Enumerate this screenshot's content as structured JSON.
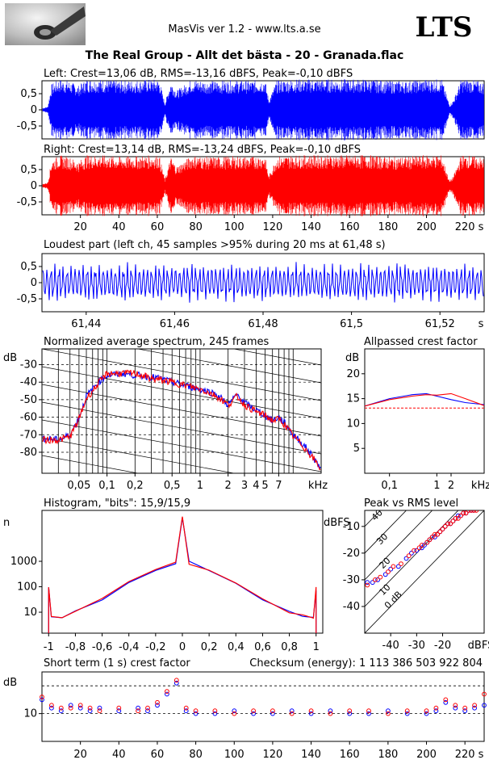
{
  "header": {
    "app_title": "MasVis ver 1.2 - www.lts.a.se",
    "logo_text": "LTS",
    "track_title": "The Real Group - Allt det bästa - 20 - Granada.flac"
  },
  "colors": {
    "left": "#0000ff",
    "right": "#ff0000",
    "background": "#ffffff",
    "axis": "#000000"
  },
  "chart_data": [
    {
      "id": "left-waveform",
      "type": "line",
      "title": "Left: Crest=13,06 dB, RMS=-13,16 dBFS, Peak=-0,10 dBFS",
      "yticks": [
        "0,5",
        "0",
        "-0,5"
      ],
      "ytick_values": [
        0.5,
        0,
        -0.5
      ],
      "ylim": [
        -0.9,
        0.9
      ],
      "xlim": [
        0,
        230
      ],
      "units_x": "s",
      "series": [
        {
          "color": "#0000ff",
          "envelope_time_s": [
            0,
            3,
            5,
            9,
            14,
            19,
            23,
            30,
            40,
            50,
            58,
            61,
            64,
            67,
            70,
            78,
            85,
            92,
            100,
            108,
            116,
            118,
            122,
            130,
            140,
            150,
            160,
            170,
            180,
            190,
            200,
            208,
            212,
            214,
            218,
            222,
            226,
            230
          ],
          "envelope_peak": [
            0.05,
            0.1,
            0.8,
            0.95,
            0.9,
            0.75,
            0.95,
            0.95,
            0.9,
            0.92,
            0.95,
            0.95,
            0.2,
            0.9,
            0.6,
            0.95,
            0.9,
            0.9,
            0.92,
            0.9,
            0.95,
            0.3,
            0.9,
            0.95,
            0.95,
            0.95,
            0.95,
            0.95,
            0.9,
            0.9,
            0.95,
            0.95,
            0.15,
            0.3,
            0.95,
            0.95,
            0.9,
            0.85
          ]
        }
      ]
    },
    {
      "id": "right-waveform",
      "type": "line",
      "title": "Right: Crest=13,14 dB, RMS=-13,24 dBFS, Peak=-0,10 dBFS",
      "yticks": [
        "0,5",
        "0",
        "-0,5"
      ],
      "ytick_values": [
        0.5,
        0,
        -0.5
      ],
      "ylim": [
        -0.9,
        0.9
      ],
      "xlim": [
        0,
        230
      ],
      "xticks": [
        "20",
        "40",
        "60",
        "80",
        "100",
        "120",
        "140",
        "160",
        "180",
        "200",
        "220",
        "s"
      ],
      "xtick_values": [
        20,
        40,
        60,
        80,
        100,
        120,
        140,
        160,
        180,
        200,
        220
      ],
      "series": [
        {
          "color": "#ff0000",
          "envelope_time_s": [
            0,
            3,
            5,
            9,
            14,
            19,
            23,
            30,
            40,
            50,
            58,
            61,
            64,
            67,
            70,
            78,
            85,
            92,
            100,
            108,
            116,
            118,
            122,
            130,
            140,
            150,
            160,
            170,
            180,
            190,
            200,
            208,
            212,
            214,
            218,
            222,
            226,
            230
          ],
          "envelope_peak": [
            0.05,
            0.1,
            0.8,
            0.95,
            0.9,
            0.75,
            0.95,
            0.95,
            0.9,
            0.92,
            0.95,
            0.95,
            0.2,
            0.9,
            0.6,
            0.95,
            0.9,
            0.9,
            0.92,
            0.9,
            0.95,
            0.3,
            0.9,
            0.95,
            0.95,
            0.95,
            0.95,
            0.95,
            0.9,
            0.9,
            0.95,
            0.95,
            0.15,
            0.3,
            0.95,
            0.95,
            0.9,
            0.85
          ]
        }
      ]
    },
    {
      "id": "loudest-part",
      "type": "line",
      "title": "Loudest part (left  ch, 45 samples >95% during 20 ms at 61,48 s)",
      "yticks": [
        "0,5",
        "0",
        "-0,5"
      ],
      "ytick_values": [
        0.5,
        0,
        -0.5
      ],
      "ylim": [
        -0.9,
        0.9
      ],
      "xlim": [
        61.43,
        61.53
      ],
      "xticks": [
        "61,44",
        "61,46",
        "61,48",
        "61,5",
        "61,52",
        "s"
      ],
      "xtick_values": [
        61.44,
        61.46,
        61.48,
        61.5,
        61.52
      ],
      "series": [
        {
          "color": "#0000ff",
          "amplitude": 0.65,
          "cycles": 110
        }
      ]
    },
    {
      "id": "average-spectrum",
      "type": "line",
      "title": "Normalized average spectrum, 245 frames",
      "ylabel": "dB",
      "ylim": [
        -92,
        -21
      ],
      "xlim": [
        0.02,
        20
      ],
      "xscale": "log",
      "yticks": [
        "-30",
        "-40",
        "-50",
        "-60",
        "-70",
        "-80"
      ],
      "ytick_values": [
        -30,
        -40,
        -50,
        -60,
        -70,
        -80
      ],
      "xticks": [
        "0,05",
        "0,1",
        "0,2",
        "0,5",
        "1",
        "2",
        "3",
        "4",
        "5",
        "7",
        "kHz"
      ],
      "xtick_values": [
        0.05,
        0.1,
        0.2,
        0.5,
        1,
        2,
        3,
        4,
        5,
        7
      ],
      "series": [
        {
          "color": "#0000ff",
          "x_khz": [
            0.02,
            0.03,
            0.04,
            0.05,
            0.06,
            0.08,
            0.1,
            0.15,
            0.2,
            0.3,
            0.5,
            0.7,
            1,
            1.5,
            2,
            2.5,
            3,
            4,
            5,
            6,
            7,
            8,
            10,
            14,
            20
          ],
          "y_db": [
            -72,
            -73,
            -70,
            -60,
            -48,
            -40,
            -36,
            -35,
            -36,
            -37,
            -40,
            -42,
            -44,
            -47,
            -53,
            -47,
            -52,
            -56,
            -59,
            -62,
            -60,
            -63,
            -70,
            -78,
            -90
          ]
        },
        {
          "color": "#ff0000",
          "x_khz": [
            0.02,
            0.03,
            0.04,
            0.05,
            0.06,
            0.08,
            0.1,
            0.15,
            0.2,
            0.3,
            0.5,
            0.7,
            1,
            1.5,
            2,
            2.5,
            3,
            4,
            5,
            6,
            7,
            8,
            10,
            14,
            20
          ],
          "y_db": [
            -73,
            -73,
            -71,
            -61,
            -49,
            -41,
            -35,
            -35,
            -35,
            -38,
            -40,
            -42,
            -44,
            -48,
            -53,
            -48,
            -53,
            -57,
            -59,
            -62,
            -61,
            -64,
            -71,
            -79,
            -90
          ]
        }
      ]
    },
    {
      "id": "allpassed-crest",
      "type": "line",
      "title": "Allpassed crest factor",
      "ylabel": "dB",
      "ylim": [
        0,
        25
      ],
      "xlim": [
        0.03,
        10
      ],
      "xscale": "log",
      "yticks": [
        "20",
        "15",
        "10",
        "5"
      ],
      "ytick_values": [
        20,
        15,
        10,
        5
      ],
      "xticks": [
        "0,1",
        "1",
        "2",
        "kHz"
      ],
      "xtick_values": [
        0.1,
        1,
        2
      ],
      "reference_db": 13.1,
      "series": [
        {
          "color": "#0000ff",
          "x_khz": [
            0.03,
            0.1,
            0.3,
            0.6,
            1,
            2,
            4,
            10
          ],
          "y_db": [
            13.5,
            15,
            15.8,
            16,
            15.5,
            14.8,
            14.2,
            13.8
          ]
        },
        {
          "color": "#ff0000",
          "x_khz": [
            0.03,
            0.1,
            0.3,
            0.6,
            1,
            2,
            4,
            10
          ],
          "y_db": [
            13.5,
            14.8,
            15.5,
            15.8,
            15.7,
            16,
            15,
            13.6
          ]
        }
      ]
    },
    {
      "id": "histogram",
      "type": "line",
      "title": "Histogram, \"bits\": 15,9/15,9",
      "ylabel": "n",
      "yscale": "log",
      "ylim": [
        1.5,
        100000
      ],
      "xlim": [
        -1.05,
        1.05
      ],
      "yticks": [
        "1000",
        "100",
        "10"
      ],
      "ytick_values": [
        1000,
        100,
        10
      ],
      "xticks": [
        "-1",
        "-0,8",
        "-0,6",
        "-0,4",
        "-0,2",
        "0",
        "0,2",
        "0,4",
        "0,6",
        "0,8",
        "1"
      ],
      "xtick_values": [
        -1,
        -0.8,
        -0.6,
        -0.4,
        -0.2,
        0,
        0.2,
        0.4,
        0.6,
        0.8,
        1
      ],
      "series": [
        {
          "color": "#0000ff",
          "x": [
            -1,
            -0.98,
            -0.9,
            -0.8,
            -0.6,
            -0.4,
            -0.2,
            -0.05,
            0,
            0.05,
            0.2,
            0.4,
            0.6,
            0.8,
            0.9,
            0.98,
            1
          ],
          "y": [
            100,
            6,
            7,
            10,
            35,
            140,
            420,
            900,
            50000,
            900,
            420,
            140,
            35,
            10,
            7,
            6,
            80
          ]
        },
        {
          "color": "#ff0000",
          "x": [
            -1,
            -0.98,
            -0.9,
            -0.8,
            -0.6,
            -0.4,
            -0.2,
            -0.05,
            0,
            0.05,
            0.2,
            0.4,
            0.6,
            0.8,
            0.9,
            0.98,
            1
          ],
          "y": [
            110,
            6,
            7,
            10,
            35,
            140,
            420,
            900,
            60000,
            900,
            420,
            140,
            35,
            10,
            7,
            6,
            90
          ]
        }
      ]
    },
    {
      "id": "peak-vs-rms",
      "type": "scatter",
      "title": "Peak vs RMS level",
      "ylabel": "dBFS",
      "xlabel": "dBFS",
      "xlim": [
        -50,
        -4
      ],
      "ylim": [
        -50,
        -4
      ],
      "yticks": [
        "-10",
        "-20",
        "-30",
        "-40"
      ],
      "ytick_values": [
        -10,
        -20,
        -30,
        -40
      ],
      "xticks": [
        "-40",
        "-30",
        "-20",
        "dBFS"
      ],
      "xtick_values": [
        -40,
        -30,
        -20
      ],
      "diagonal_labels": [
        "40",
        "30",
        "20",
        "10",
        "0 dB"
      ],
      "diagonal_offsets": [
        40,
        30,
        20,
        10,
        0
      ],
      "series": [
        {
          "color": "#0000ff",
          "x": [
            -49,
            -47,
            -45,
            -42,
            -40,
            -37,
            -34,
            -32,
            -30,
            -28,
            -27,
            -26,
            -25,
            -24,
            -23,
            -22,
            -21,
            -20,
            -19,
            -18,
            -17,
            -16,
            -15,
            -14,
            -13,
            -12,
            -11,
            -10,
            -9,
            -8
          ],
          "y": [
            -31,
            -31,
            -30,
            -28,
            -26,
            -25,
            -22,
            -20,
            -19,
            -18,
            -17,
            -16,
            -15,
            -14,
            -14,
            -13,
            -12,
            -11,
            -10,
            -9,
            -9,
            -8,
            -7,
            -6,
            -6,
            -5,
            -5,
            -4,
            -4,
            -4
          ]
        },
        {
          "color": "#ff0000",
          "x": [
            -49,
            -46,
            -44,
            -41,
            -39,
            -36,
            -33,
            -31,
            -29,
            -28,
            -26,
            -25,
            -24,
            -23,
            -22,
            -21,
            -20,
            -19,
            -18,
            -17,
            -16,
            -15,
            -14,
            -13,
            -12,
            -11,
            -10,
            -9,
            -8,
            -7
          ],
          "y": [
            -32,
            -30,
            -29,
            -27,
            -25,
            -24,
            -21,
            -19,
            -18,
            -17,
            -16,
            -15,
            -14,
            -13,
            -13,
            -12,
            -11,
            -10,
            -9,
            -9,
            -8,
            -7,
            -7,
            -6,
            -5,
            -5,
            -4,
            -4,
            -4,
            -4
          ]
        }
      ]
    },
    {
      "id": "short-term-crest",
      "type": "scatter",
      "title": "Short term (1 s) crest factor",
      "ylabel": "dB",
      "ylim": [
        0,
        25
      ],
      "xlim": [
        0,
        230
      ],
      "yticks": [
        "10"
      ],
      "ytick_values": [
        10
      ],
      "guides_db": [
        10,
        20
      ],
      "xticks": [
        "20",
        "40",
        "60",
        "80",
        "100",
        "120",
        "140",
        "160",
        "180",
        "200",
        "220",
        "s"
      ],
      "xtick_values": [
        20,
        40,
        60,
        80,
        100,
        120,
        140,
        160,
        180,
        200,
        220
      ],
      "series": [
        {
          "color": "#0000ff",
          "x": [
            0,
            5,
            10,
            15,
            20,
            25,
            30,
            40,
            50,
            55,
            60,
            65,
            70,
            75,
            80,
            90,
            100,
            110,
            120,
            130,
            140,
            150,
            160,
            170,
            180,
            190,
            200,
            205,
            210,
            215,
            220,
            225,
            230
          ],
          "y": [
            15,
            12,
            11,
            13,
            12,
            11,
            12,
            11,
            12,
            11,
            13,
            17,
            21,
            11,
            10,
            10,
            11,
            10,
            10,
            11,
            10,
            11,
            10,
            10,
            11,
            10,
            10,
            11,
            14,
            12,
            11,
            12,
            13
          ]
        },
        {
          "color": "#ff0000",
          "x": [
            0,
            5,
            10,
            15,
            20,
            25,
            30,
            40,
            50,
            55,
            60,
            65,
            70,
            75,
            80,
            90,
            100,
            110,
            120,
            130,
            140,
            150,
            160,
            170,
            180,
            190,
            200,
            205,
            210,
            215,
            220,
            225,
            230
          ],
          "y": [
            16,
            13,
            12,
            12,
            13,
            12,
            11,
            12,
            11,
            12,
            14,
            18,
            22,
            12,
            11,
            11,
            10,
            11,
            11,
            10,
            11,
            10,
            11,
            11,
            10,
            11,
            11,
            12,
            15,
            13,
            12,
            13,
            17
          ]
        }
      ]
    }
  ],
  "checksum_text": "Checksum (energy):  1 113 386 503 922 804"
}
